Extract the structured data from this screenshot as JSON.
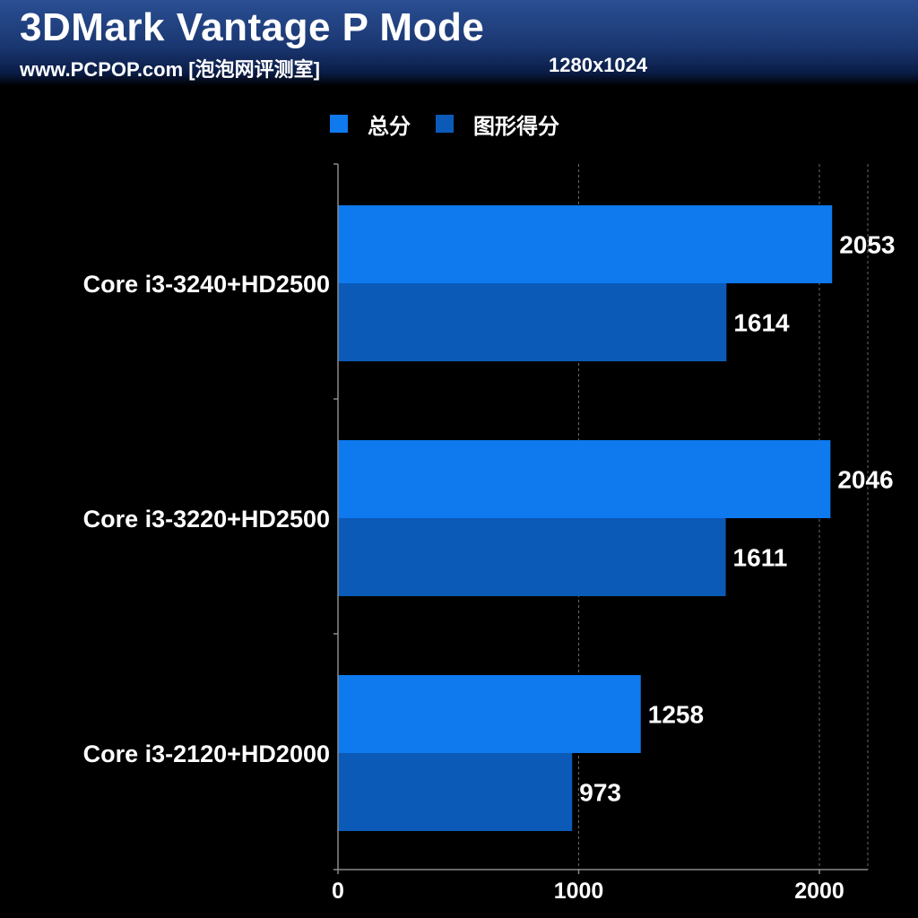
{
  "header": {
    "title": "3DMark Vantage P Mode",
    "site": "www.PCPOP.com [泡泡网评测室]",
    "resolution": "1280x1024"
  },
  "chart_data": {
    "type": "bar",
    "orientation": "horizontal",
    "title": "3DMark Vantage P Mode",
    "categories": [
      "Core i3-3240+HD2500",
      "Core i3-3220+HD2500",
      "Core i3-2120+HD2000"
    ],
    "series": [
      {
        "name": "总分",
        "values": [
          2053,
          2046,
          1258
        ],
        "color": "#0f79ee"
      },
      {
        "name": "图形得分",
        "values": [
          1614,
          1611,
          973
        ],
        "color": "#0b5ab8"
      }
    ],
    "xlim": [
      0,
      2200
    ],
    "xticks": [
      0,
      1000,
      2000
    ],
    "grid": true,
    "legend_position": "top"
  }
}
